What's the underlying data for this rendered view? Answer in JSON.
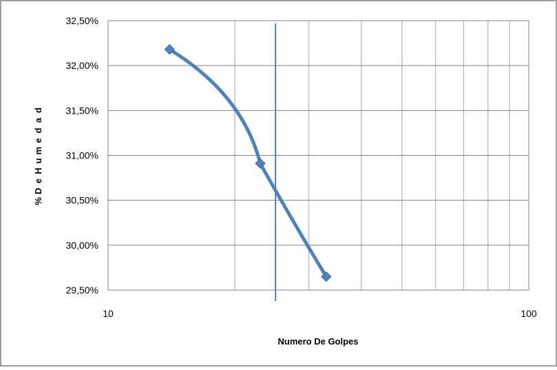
{
  "chart_data": {
    "type": "scatter",
    "title": "",
    "xlabel": "Numero De Golpes",
    "ylabel": "% De Humedad",
    "x_scale": "log",
    "xlim": [
      10,
      100
    ],
    "ylim": [
      0.295,
      0.325
    ],
    "x_tick_labels": [
      "10",
      "100"
    ],
    "y_tick_labels": [
      "29,50%",
      "30,00%",
      "30,50%",
      "31,00%",
      "31,50%",
      "32,00%",
      "32,50%"
    ],
    "grid": true,
    "legend": "none",
    "series": [
      {
        "x": [
          14,
          23,
          33
        ],
        "y": [
          0.3218,
          0.3091,
          0.2965
        ],
        "color": "#4f81bd",
        "marker": "diamond",
        "line": "smooth"
      }
    ],
    "vertical_line": {
      "x": 25,
      "color": "#4f81bd"
    },
    "colors": {
      "series": "#4f81bd",
      "grid": "#c0c0c0",
      "frame": "#808080",
      "border": "#7f7f7f"
    }
  }
}
